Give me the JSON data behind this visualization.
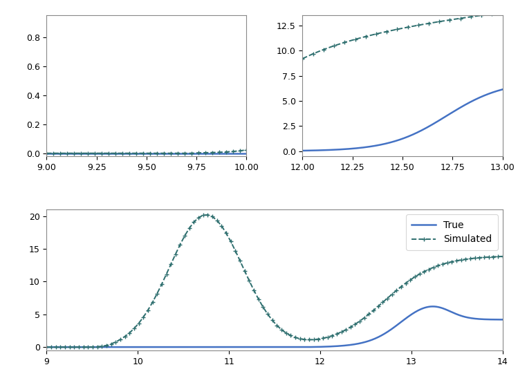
{
  "true_color": "#4472c4",
  "sim_color": "#2d6e6e",
  "true_lw": 1.8,
  "sim_lw": 1.4,
  "marker": "+",
  "markersize": 5,
  "background": "white",
  "legend_labels": [
    "True",
    "Simulated"
  ],
  "subplot1": {
    "xlim": [
      9.0,
      10.0
    ],
    "ylim": [
      -0.02,
      0.95
    ],
    "xticks": [
      9.0,
      9.25,
      9.5,
      9.75,
      10.0
    ],
    "yticks": [
      0.0,
      0.2,
      0.4,
      0.6,
      0.8
    ]
  },
  "subplot2": {
    "xlim": [
      12.0,
      13.0
    ],
    "ylim": [
      -0.5,
      13.5
    ],
    "xticks": [
      12.0,
      12.25,
      12.5,
      12.75,
      13.0
    ],
    "yticks": [
      0.0,
      2.5,
      5.0,
      7.5,
      10.0,
      12.5
    ]
  },
  "subplot3": {
    "xlim": [
      9.0,
      14.0
    ],
    "ylim": [
      -0.5,
      21.0
    ],
    "xticks": [
      9,
      10,
      11,
      12,
      13,
      14
    ],
    "yticks": [
      0,
      5,
      10,
      15,
      20
    ]
  }
}
